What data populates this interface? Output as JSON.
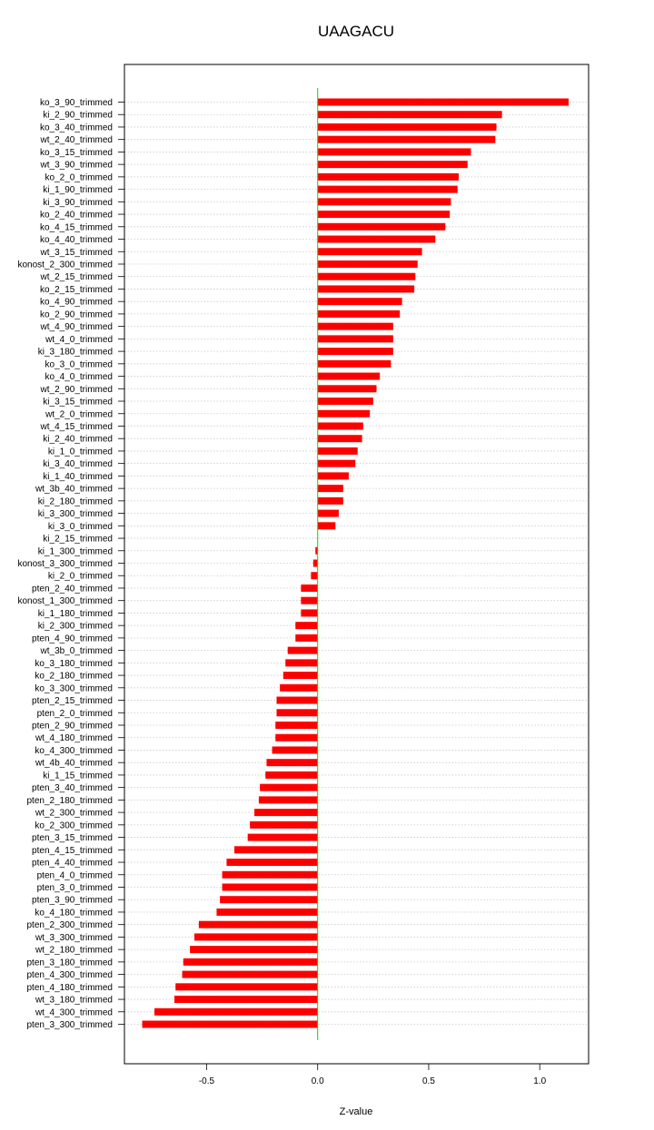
{
  "chart_data": {
    "type": "bar",
    "orientation": "horizontal",
    "title": "UAAGACU",
    "xlabel": "Z-value",
    "ylabel": "",
    "xlim": [
      -0.87,
      1.22
    ],
    "xticks": [
      -0.5,
      0.0,
      0.5,
      1.0
    ],
    "xtick_labels": [
      "-0.5",
      "0.0",
      "0.5",
      "1.0"
    ],
    "grid": "horizontal dotted",
    "reference_line": 0,
    "colors": {
      "bar": "#ff0000",
      "bar_stripe": "#cc0000",
      "zero_line": "#00dd00",
      "grid": "#c8c8c8",
      "frame": "#000000"
    },
    "categories": [
      "ko_3_90_trimmed",
      "ki_2_90_trimmed",
      "ko_3_40_trimmed",
      "wt_2_40_trimmed",
      "ko_3_15_trimmed",
      "wt_3_90_trimmed",
      "ko_2_0_trimmed",
      "ki_1_90_trimmed",
      "ki_3_90_trimmed",
      "ko_2_40_trimmed",
      "ko_4_15_trimmed",
      "ko_4_40_trimmed",
      "wt_3_15_trimmed",
      "konost_2_300_trimmed",
      "wt_2_15_trimmed",
      "ko_2_15_trimmed",
      "ko_4_90_trimmed",
      "ko_2_90_trimmed",
      "wt_4_90_trimmed",
      "wt_4_0_trimmed",
      "ki_3_180_trimmed",
      "ko_3_0_trimmed",
      "ko_4_0_trimmed",
      "wt_2_90_trimmed",
      "ki_3_15_trimmed",
      "wt_2_0_trimmed",
      "wt_4_15_trimmed",
      "ki_2_40_trimmed",
      "ki_1_0_trimmed",
      "ki_3_40_trimmed",
      "ki_1_40_trimmed",
      "wt_3b_40_trimmed",
      "ki_2_180_trimmed",
      "ki_3_300_trimmed",
      "ki_3_0_trimmed",
      "ki_2_15_trimmed",
      "ki_1_300_trimmed",
      "konost_3_300_trimmed",
      "ki_2_0_trimmed",
      "pten_2_40_trimmed",
      "konost_1_300_trimmed",
      "ki_1_180_trimmed",
      "ki_2_300_trimmed",
      "pten_4_90_trimmed",
      "wt_3b_0_trimmed",
      "ko_3_180_trimmed",
      "ko_2_180_trimmed",
      "ko_3_300_trimmed",
      "pten_2_15_trimmed",
      "pten_2_0_trimmed",
      "pten_2_90_trimmed",
      "wt_4_180_trimmed",
      "ko_4_300_trimmed",
      "wt_4b_40_trimmed",
      "ki_1_15_trimmed",
      "pten_3_40_trimmed",
      "pten_2_180_trimmed",
      "wt_2_300_trimmed",
      "ko_2_300_trimmed",
      "pten_3_15_trimmed",
      "pten_4_15_trimmed",
      "pten_4_40_trimmed",
      "pten_4_0_trimmed",
      "pten_3_0_trimmed",
      "pten_3_90_trimmed",
      "ko_4_180_trimmed",
      "pten_2_300_trimmed",
      "wt_3_300_trimmed",
      "wt_2_180_trimmed",
      "pten_3_180_trimmed",
      "pten_4_300_trimmed",
      "pten_4_180_trimmed",
      "wt_3_180_trimmed",
      "wt_4_300_trimmed",
      "pten_3_300_trimmed"
    ],
    "values": [
      1.13,
      0.83,
      0.805,
      0.8,
      0.69,
      0.675,
      0.635,
      0.63,
      0.6,
      0.595,
      0.575,
      0.53,
      0.47,
      0.45,
      0.44,
      0.435,
      0.38,
      0.37,
      0.34,
      0.34,
      0.34,
      0.33,
      0.28,
      0.265,
      0.25,
      0.235,
      0.205,
      0.2,
      0.18,
      0.17,
      0.14,
      0.115,
      0.115,
      0.095,
      0.08,
      0.0,
      -0.01,
      -0.02,
      -0.03,
      -0.075,
      -0.075,
      -0.075,
      -0.1,
      -0.1,
      -0.135,
      -0.145,
      -0.155,
      -0.17,
      -0.185,
      -0.185,
      -0.19,
      -0.19,
      -0.205,
      -0.23,
      -0.235,
      -0.26,
      -0.265,
      -0.285,
      -0.305,
      -0.315,
      -0.375,
      -0.41,
      -0.43,
      -0.43,
      -0.44,
      -0.455,
      -0.535,
      -0.555,
      -0.575,
      -0.605,
      -0.61,
      -0.64,
      -0.645,
      -0.735,
      -0.79
    ]
  }
}
